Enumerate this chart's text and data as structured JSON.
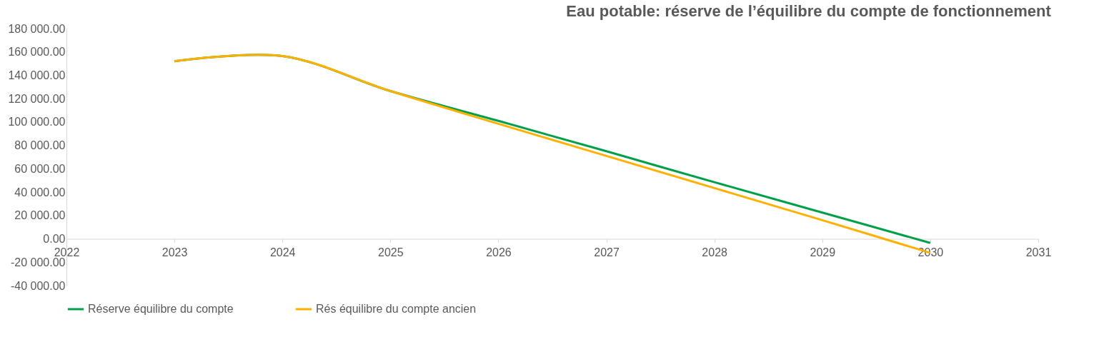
{
  "chart_data": {
    "type": "line",
    "title": "Eau potable: réserve de l’équilibre du compte de fonctionnement",
    "x": [
      2023,
      2024,
      2025,
      2026,
      2027,
      2028,
      2029,
      2030
    ],
    "series": [
      {
        "name": "Réserve équilibre du compte",
        "color": "#00a04a",
        "values": [
          152000,
          156500,
          126500,
          101000,
          75000,
          48500,
          22500,
          -3500
        ]
      },
      {
        "name": "Rés équilibre du compte ancien",
        "color": "#ffb000",
        "values": [
          152000,
          156500,
          126500,
          98500,
          71000,
          43500,
          16000,
          -12000
        ]
      }
    ],
    "xlim": [
      2022,
      2031
    ],
    "xticks": [
      2022,
      2023,
      2024,
      2025,
      2026,
      2027,
      2028,
      2029,
      2030,
      2031
    ],
    "ylim": [
      -40000,
      180000
    ],
    "yticks": [
      {
        "value": -40000,
        "label": "-40 000.00"
      },
      {
        "value": -20000,
        "label": "-20 000.00"
      },
      {
        "value": 0,
        "label": "0.00"
      },
      {
        "value": 20000,
        "label": "20 000.00"
      },
      {
        "value": 40000,
        "label": "40 000.00"
      },
      {
        "value": 60000,
        "label": "60 000.00"
      },
      {
        "value": 80000,
        "label": "80 000.00"
      },
      {
        "value": 100000,
        "label": "100 000.00"
      },
      {
        "value": 120000,
        "label": "120 000.00"
      },
      {
        "value": 140000,
        "label": "140 000.00"
      },
      {
        "value": 160000,
        "label": "160 000.00"
      },
      {
        "value": 180000,
        "label": "180 000.00"
      }
    ],
    "grid": false,
    "legend": "bottom",
    "marker": "none",
    "line_style": "solid"
  }
}
